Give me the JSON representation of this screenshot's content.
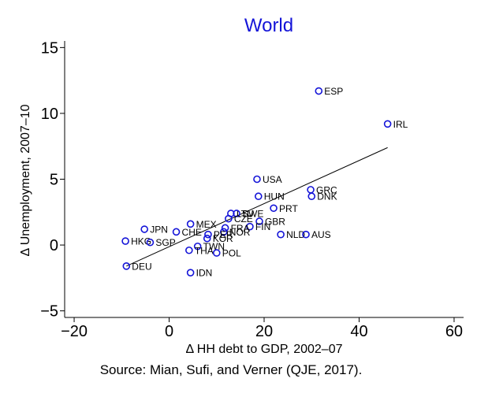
{
  "chart_data": {
    "type": "scatter",
    "title": "World",
    "xlabel": "Δ HH debt to GDP, 2002–07",
    "ylabel": "Δ Unemployment, 2007–10",
    "source": "Source: Mian, Sufi, and Verner (QJE, 2017).",
    "xlim": [
      -22,
      62
    ],
    "ylim": [
      -5.5,
      15.5
    ],
    "xticks": [
      -20,
      0,
      20,
      40,
      60
    ],
    "yticks": [
      -5,
      0,
      5,
      10,
      15
    ],
    "grid": false,
    "marker_color": "#1414d8",
    "points": [
      {
        "label": "ESP",
        "x": 31.5,
        "y": 11.7
      },
      {
        "label": "IRL",
        "x": 46.0,
        "y": 9.2
      },
      {
        "label": "USA",
        "x": 18.5,
        "y": 5.0
      },
      {
        "label": "GRC",
        "x": 29.8,
        "y": 4.2
      },
      {
        "label": "DNK",
        "x": 30.0,
        "y": 3.7
      },
      {
        "label": "HUN",
        "x": 18.8,
        "y": 3.7
      },
      {
        "label": "PRT",
        "x": 22.0,
        "y": 2.8
      },
      {
        "label": "LTU",
        "x": 13.0,
        "y": 2.4
      },
      {
        "label": "SWE",
        "x": 14.2,
        "y": 2.4
      },
      {
        "label": "CZE",
        "x": 12.5,
        "y": 2.0
      },
      {
        "label": "GBR",
        "x": 19.0,
        "y": 1.8
      },
      {
        "label": "FIN",
        "x": 17.0,
        "y": 1.4
      },
      {
        "label": "FRA",
        "x": 11.8,
        "y": 1.3
      },
      {
        "label": "NOR",
        "x": 11.5,
        "y": 1.0
      },
      {
        "label": "MEX",
        "x": 4.5,
        "y": 1.6
      },
      {
        "label": "CHE",
        "x": 1.5,
        "y": 1.0
      },
      {
        "label": "JPN",
        "x": -5.2,
        "y": 1.2
      },
      {
        "label": "HKG",
        "x": -9.2,
        "y": 0.3
      },
      {
        "label": "SGP",
        "x": -4.0,
        "y": 0.2
      },
      {
        "label": "NLD",
        "x": 23.5,
        "y": 0.8
      },
      {
        "label": "AUS",
        "x": 28.8,
        "y": 0.8
      },
      {
        "label": "KOR",
        "x": 8.0,
        "y": 0.5
      },
      {
        "label": "PER",
        "x": 8.2,
        "y": 0.8
      },
      {
        "label": "TWN",
        "x": 6.0,
        "y": -0.1
      },
      {
        "label": "THA",
        "x": 4.2,
        "y": -0.4
      },
      {
        "label": "POL",
        "x": 10.0,
        "y": -0.6
      },
      {
        "label": "DEU",
        "x": -9.0,
        "y": -1.6
      },
      {
        "label": "IDN",
        "x": 4.5,
        "y": -2.1
      }
    ],
    "fit_line": {
      "x": [
        -9.0,
        46.0
      ],
      "y": [
        -1.6,
        7.4
      ]
    }
  }
}
